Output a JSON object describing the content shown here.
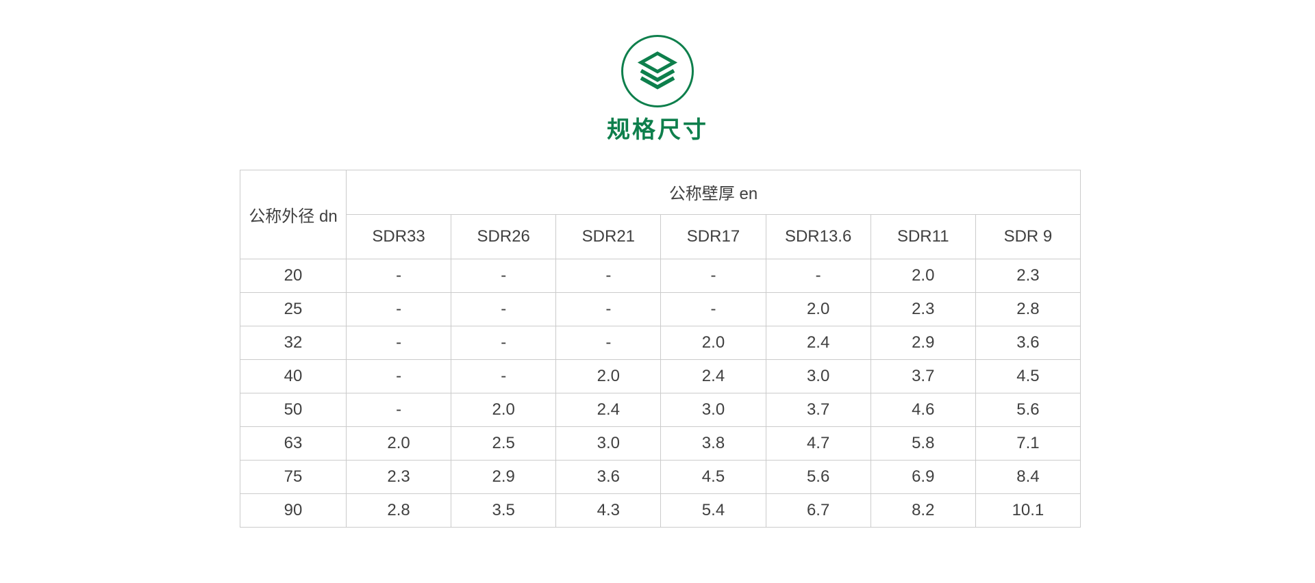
{
  "theme": {
    "accent_green": "#0e7f4c",
    "table_border_color": "#cbcbcb",
    "table_text_color": "#404040",
    "background": "#ffffff"
  },
  "header": {
    "icon": "layers-icon",
    "title": "规格尺寸"
  },
  "table": {
    "corner_header": "公称外径 dn",
    "group_header": "公称壁厚 en",
    "columns": [
      "SDR33",
      "SDR26",
      "SDR21",
      "SDR17",
      "SDR13.6",
      "SDR11",
      "SDR 9"
    ],
    "rows": [
      {
        "dn": "20",
        "values": [
          "-",
          "-",
          "-",
          "-",
          "-",
          "2.0",
          "2.3"
        ]
      },
      {
        "dn": "25",
        "values": [
          "-",
          "-",
          "-",
          "-",
          "2.0",
          "2.3",
          "2.8"
        ]
      },
      {
        "dn": "32",
        "values": [
          "-",
          "-",
          "-",
          "2.0",
          "2.4",
          "2.9",
          "3.6"
        ]
      },
      {
        "dn": "40",
        "values": [
          "-",
          "-",
          "2.0",
          "2.4",
          "3.0",
          "3.7",
          "4.5"
        ]
      },
      {
        "dn": "50",
        "values": [
          "-",
          "2.0",
          "2.4",
          "3.0",
          "3.7",
          "4.6",
          "5.6"
        ]
      },
      {
        "dn": "63",
        "values": [
          "2.0",
          "2.5",
          "3.0",
          "3.8",
          "4.7",
          "5.8",
          "7.1"
        ]
      },
      {
        "dn": "75",
        "values": [
          "2.3",
          "2.9",
          "3.6",
          "4.5",
          "5.6",
          "6.9",
          "8.4"
        ]
      },
      {
        "dn": "90",
        "values": [
          "2.8",
          "3.5",
          "4.3",
          "5.4",
          "6.7",
          "8.2",
          "10.1"
        ]
      }
    ]
  }
}
